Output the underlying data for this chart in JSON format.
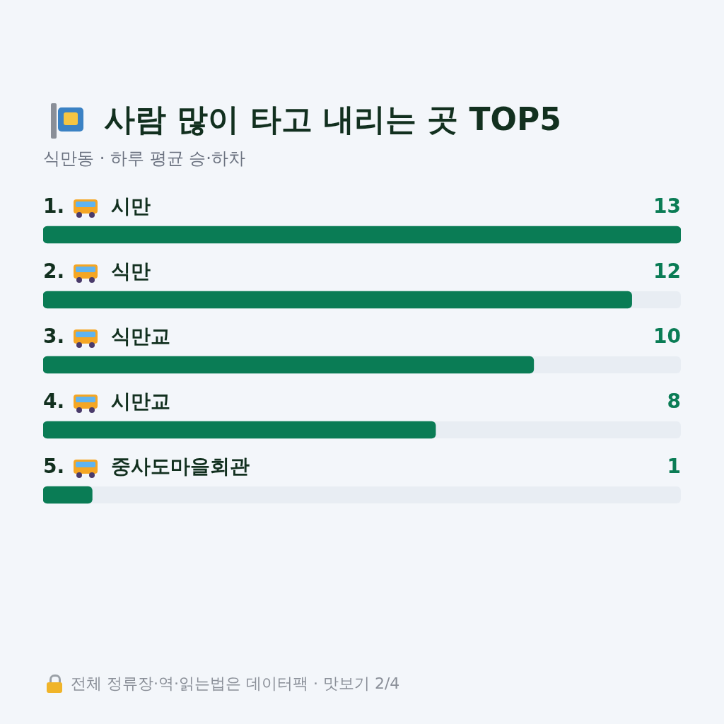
{
  "chart_data": {
    "type": "bar",
    "orientation": "horizontal",
    "title": "사람 많이 타고 내리는 곳 TOP5",
    "subtitle": "식만동 · 하루 평균 승·하차",
    "categories": [
      "1. 시만",
      "2. 식만",
      "3. 식만교",
      "4. 시만교",
      "5. 중사도마을회관"
    ],
    "values": [
      13,
      12,
      10,
      8,
      1
    ],
    "color": "#0a7c55",
    "xlim": [
      0,
      13
    ],
    "data_labels": true,
    "legend": false,
    "tick_labels": false,
    "annotations": [
      "전체 정류장·역·읽는법은 데이터팩 · 맛보기 2/4"
    ]
  }
}
